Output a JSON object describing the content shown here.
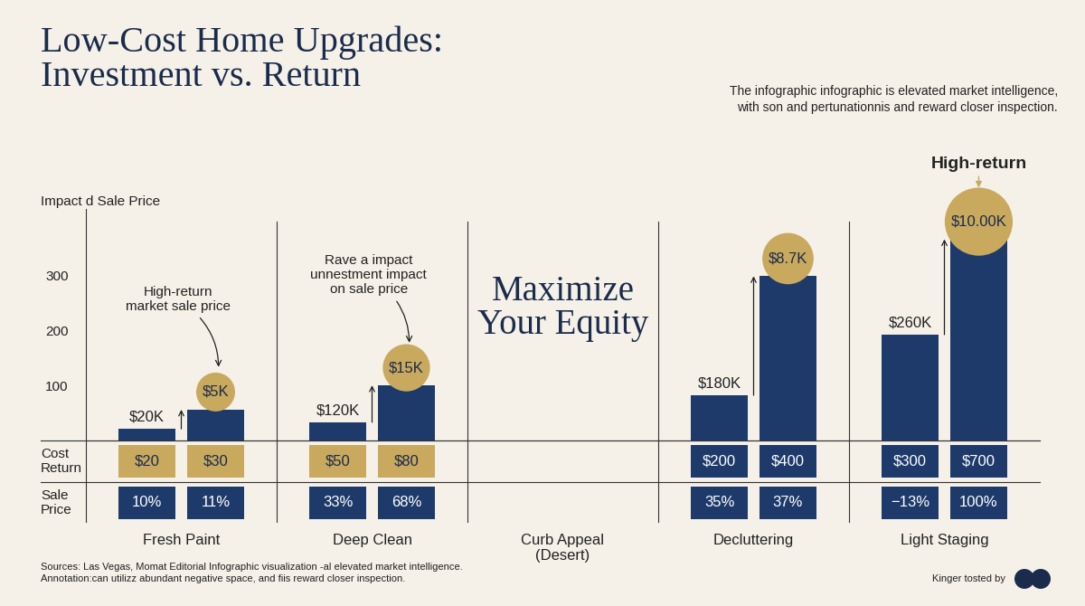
{
  "title": "Low-Cost Home Upgrades:\nInvestment vs. Return",
  "subtitle": "The infographic infographic is elevated market intelligence,\nwith son and pertunationnis and reward closer inspection.",
  "chart_data": {
    "type": "bar",
    "y_label": "Impact d Sale Price",
    "categories": [
      "Fresh Paint",
      "Deep Clean",
      "Curb Appeal\n(Desert)",
      "Decluttering",
      "Light Staging"
    ],
    "ylim": [
      0,
      420
    ],
    "yticks": [
      100,
      200,
      300
    ],
    "series": [
      {
        "color": "#1e3a6b",
        "values": [
          21,
          33,
          null,
          82,
          192
        ],
        "tags": [
          "$20K",
          "$120K",
          null,
          "$180K",
          "$260K"
        ]
      },
      {
        "color": "#1e3a6b",
        "values": [
          56,
          100,
          null,
          298,
          365
        ],
        "tags": [
          "$5K",
          "$15K",
          null,
          "$8.7K",
          "$10.00K"
        ]
      }
    ],
    "feature_text": "Maximize\nYour Equity",
    "annotations": [
      {
        "text": "High-return\nmarket sale price",
        "category": "Fresh Paint"
      },
      {
        "text": "Rave a impact\nunnestment impact\non sale price",
        "category": "Deep Clean"
      },
      {
        "text": "High-return",
        "category": "Light Staging"
      }
    ]
  },
  "table": {
    "rows": [
      {
        "label": "Cost\nReturn",
        "cells": [
          [
            "$20",
            "$30"
          ],
          [
            "$50",
            "$80"
          ],
          null,
          [
            "$200",
            "$400"
          ],
          [
            "$300",
            "$700"
          ]
        ],
        "colors": [
          "#c8a95e",
          "#c8a95e",
          null,
          "#1e3a6b",
          "#1e3a6b"
        ]
      },
      {
        "label": "Sale\nPrice",
        "cells": [
          [
            "10%",
            "11%"
          ],
          [
            "33%",
            "68%"
          ],
          null,
          [
            "35%",
            "37%"
          ],
          [
            "−13%",
            "100%"
          ]
        ],
        "colors": [
          "#1e3a6b",
          "#1e3a6b",
          null,
          "#1e3a6b",
          "#1e3a6b"
        ]
      }
    ]
  },
  "footer": {
    "sources": "Sources: Las Vegas, Momat Editorial Infographic visualization -al elevated market intelligence.\nAnnotation:can utilizz abundant negative space, and fiis reward closer inspection.",
    "credit": "Kinger tosted by"
  }
}
